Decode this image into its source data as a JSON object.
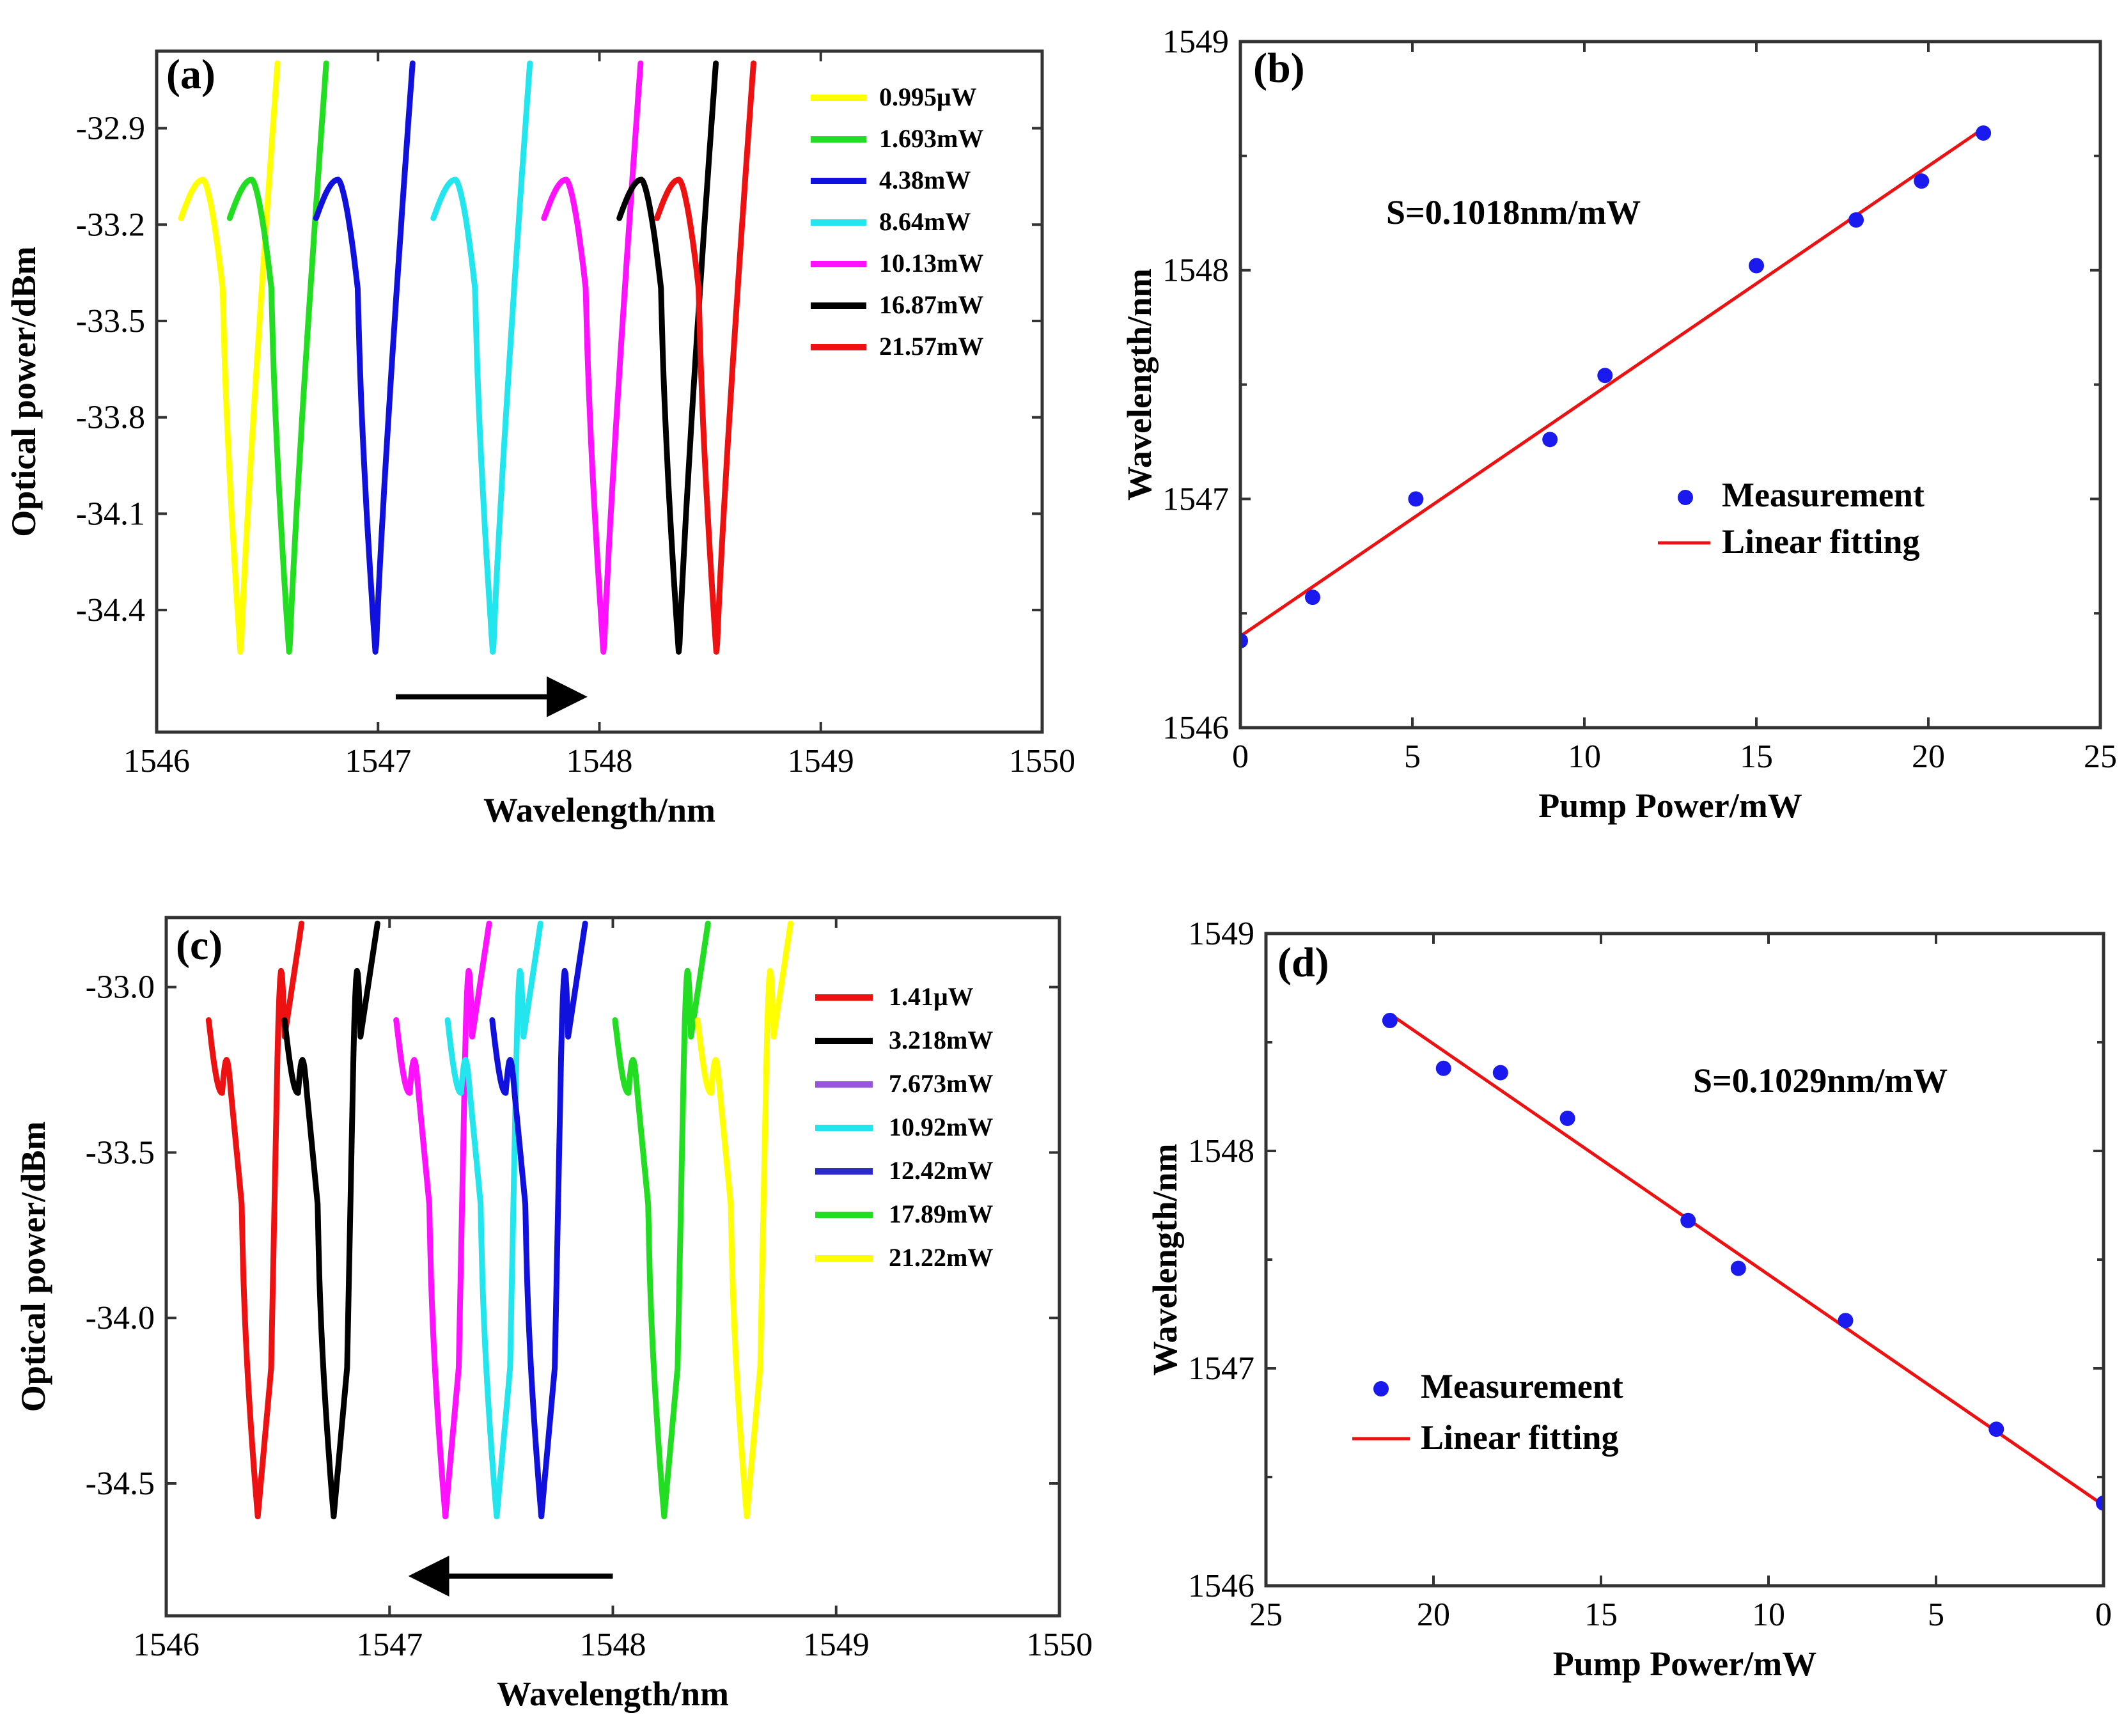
{
  "chart_data": [
    {
      "type": "line",
      "panel_label": "(a)",
      "xlabel": "Wavelength/nm",
      "ylabel": "Optical power/dBm",
      "xlim": [
        1546,
        1550
      ],
      "ylim": [
        -34.78,
        -32.66
      ],
      "xticks": [
        1546,
        1547,
        1548,
        1549,
        1550
      ],
      "yticks": [
        -32.9,
        -33.2,
        -33.5,
        -33.8,
        -34.1,
        -34.4
      ],
      "ytick_labels": [
        "-32.9",
        "-33.2",
        "-33.5",
        "-33.8",
        "-34.1",
        "-34.4"
      ],
      "legend_placement": "top-right",
      "dip_shape": "single",
      "arrow": {
        "from": 1547.08,
        "to": 1547.9,
        "y": -34.67
      },
      "series": [
        {
          "name": "0.995μW",
          "color": "#ffff00",
          "dip_center": 1546.38
        },
        {
          "name": "1.693mW",
          "color": "#22dd22",
          "dip_center": 1546.6
        },
        {
          "name": "4.38mW",
          "color": "#1111dd",
          "dip_center": 1546.99
        },
        {
          "name": "8.64mW",
          "color": "#22e5ee",
          "dip_center": 1547.52
        },
        {
          "name": "10.13mW",
          "color": "#ff11ff",
          "dip_center": 1548.02
        },
        {
          "name": "16.87mW",
          "color": "#000000",
          "dip_center": 1548.36
        },
        {
          "name": "21.57mW",
          "color": "#ee1111",
          "dip_center": 1548.53
        }
      ]
    },
    {
      "type": "scatter",
      "panel_label": "(b)",
      "xlabel": "Pump Power/mW",
      "ylabel": "Wavelength/nm",
      "xlim": [
        0,
        25
      ],
      "ylim": [
        1546,
        1549
      ],
      "xticks": [
        0,
        5,
        10,
        15,
        20,
        25
      ],
      "yticks": [
        1546,
        1547,
        1548,
        1549
      ],
      "annotation": "S=0.1018nm/mW",
      "legend_placement": "center-right",
      "series": [
        {
          "name": "Measurement",
          "color": "#1a1aee",
          "x": [
            0,
            2.1,
            5.1,
            9.0,
            10.6,
            15.0,
            17.9,
            19.8,
            21.6
          ],
          "y": [
            1546.38,
            1546.57,
            1547.0,
            1547.26,
            1547.54,
            1548.02,
            1548.22,
            1548.39,
            1548.6
          ]
        },
        {
          "name": "Linear fitting",
          "color": "#ee1111",
          "x": [
            0,
            21.6
          ],
          "y": [
            1546.4,
            1548.62
          ]
        }
      ]
    },
    {
      "type": "line",
      "panel_label": "(c)",
      "xlabel": "Wavelength/nm",
      "ylabel": "Optical power/dBm",
      "xlim": [
        1546,
        1550
      ],
      "ylim": [
        -34.9,
        -32.79
      ],
      "xticks": [
        1546,
        1547,
        1548,
        1549,
        1550
      ],
      "yticks": [
        -33.0,
        -33.5,
        -34.0,
        -34.5
      ],
      "ytick_labels": [
        "-33.0",
        "-33.5",
        "-34.0",
        "-34.5"
      ],
      "legend_placement": "top-right",
      "dip_shape": "double",
      "arrow": {
        "from": 1548.0,
        "to": 1547.13,
        "y": -34.78
      },
      "series": [
        {
          "name": "1.41μW",
          "color": "#ee1111",
          "dip_center": 1546.41
        },
        {
          "name": "3.218mW",
          "color": "#000000",
          "dip_center": 1546.75
        },
        {
          "name": "7.673mW",
          "color": "#ff11ff",
          "dip_center": 1547.25
        },
        {
          "name": "10.92mW",
          "color": "#22e5ee",
          "dip_center": 1547.48
        },
        {
          "name": "12.42mW",
          "color": "#1111dd",
          "dip_center": 1547.68
        },
        {
          "name": "17.89mW",
          "color": "#22dd22",
          "dip_center": 1548.23
        },
        {
          "name": "21.22mW",
          "color": "#ffff00",
          "dip_center": 1548.6
        }
      ],
      "legend_swatch_colors": [
        "#ee1111",
        "#000000",
        "#9955dd",
        "#22e5ee",
        "#2a2acc",
        "#22dd22",
        "#ffff00"
      ]
    },
    {
      "type": "scatter",
      "panel_label": "(d)",
      "xlabel": "Pump Power/mW",
      "ylabel": "Wavelength/nm",
      "xlim": [
        25,
        0
      ],
      "ylim": [
        1546,
        1549
      ],
      "xticks": [
        25,
        20,
        15,
        10,
        5,
        0
      ],
      "yticks": [
        1546,
        1547,
        1548,
        1549
      ],
      "annotation": "S=0.1029nm/mW",
      "legend_placement": "bottom-left",
      "series": [
        {
          "name": "Measurement",
          "color": "#1a1aee",
          "x": [
            21.3,
            19.7,
            18.0,
            16.0,
            12.4,
            10.9,
            7.7,
            3.2,
            0
          ],
          "y": [
            1548.6,
            1548.38,
            1548.36,
            1548.15,
            1547.68,
            1547.46,
            1547.22,
            1546.72,
            1546.38
          ]
        },
        {
          "name": "Linear fitting",
          "color": "#ee1111",
          "x": [
            21.3,
            0
          ],
          "y": [
            1548.63,
            1546.37
          ]
        }
      ]
    }
  ]
}
